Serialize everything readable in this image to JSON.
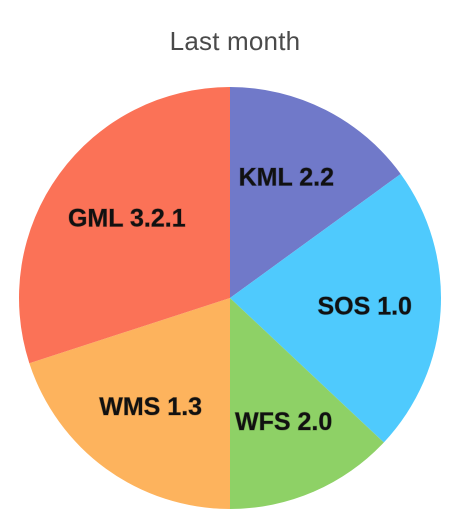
{
  "chart_data": {
    "type": "pie",
    "title": "Last month",
    "categories": [
      "KML 2.2",
      "SOS 1.0",
      "WFS 2.0",
      "WMS 1.3",
      "GML 3.2.1"
    ],
    "values": [
      15,
      22,
      13,
      20,
      30
    ],
    "unit": "%",
    "colors": [
      "#7079c9",
      "#4fcafd",
      "#8ed166",
      "#fdb35d",
      "#fb7257"
    ],
    "start_angle_deg": 0,
    "direction": "clockwise",
    "labels_inside": true,
    "legend": "none"
  }
}
